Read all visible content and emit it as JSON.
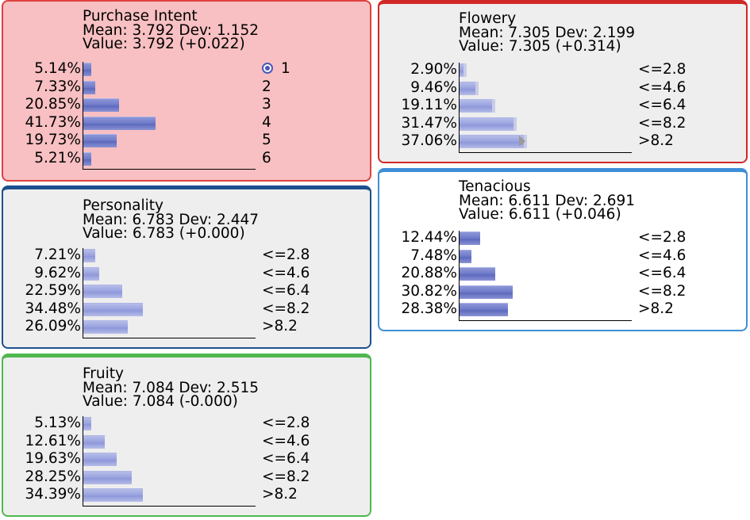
{
  "nodes": {
    "purchase_intent": {
      "title": "Purchase Intent",
      "stats": "Mean: 3.792 Dev: 1.152",
      "value": "Value: 3.792 (+0.022)",
      "border_color": "#e04040",
      "background": "#f8c0c2",
      "rows": [
        {
          "pct": "5.14%",
          "label": "1",
          "value": 5.14
        },
        {
          "pct": "7.33%",
          "label": "2",
          "value": 7.33
        },
        {
          "pct": "20.85%",
          "label": "3",
          "value": 20.85
        },
        {
          "pct": "41.73%",
          "label": "4",
          "value": 41.73
        },
        {
          "pct": "19.73%",
          "label": "5",
          "value": 19.73
        },
        {
          "pct": "5.21%",
          "label": "6",
          "value": 5.21
        }
      ]
    },
    "flowery": {
      "title": "Flowery",
      "stats": "Mean: 7.305 Dev: 2.199",
      "value": "Value: 7.305 (+0.314)",
      "border_color": "#d02828",
      "background": "#eeeeee",
      "rows": [
        {
          "pct": "2.90%",
          "label": "<=2.8",
          "value": 2.9
        },
        {
          "pct": "9.46%",
          "label": "<=4.6",
          "value": 9.46
        },
        {
          "pct": "19.11%",
          "label": "<=6.4",
          "value": 19.11
        },
        {
          "pct": "31.47%",
          "label": "<=8.2",
          "value": 31.47
        },
        {
          "pct": "37.06%",
          "label": ">8.2",
          "value": 37.06
        }
      ]
    },
    "personality": {
      "title": "Personality",
      "stats": "Mean: 6.783 Dev: 2.447",
      "value": "Value: 6.783 (+0.000)",
      "border_color": "#1f4f8f",
      "background": "#eeeeee",
      "rows": [
        {
          "pct": "7.21%",
          "label": "<=2.8",
          "value": 7.21
        },
        {
          "pct": "9.62%",
          "label": "<=4.6",
          "value": 9.62
        },
        {
          "pct": "22.59%",
          "label": "<=6.4",
          "value": 22.59
        },
        {
          "pct": "34.48%",
          "label": "<=8.2",
          "value": 34.48
        },
        {
          "pct": "26.09%",
          "label": ">8.2",
          "value": 26.09
        }
      ]
    },
    "tenacious": {
      "title": "Tenacious",
      "stats": "Mean: 6.611 Dev: 2.691",
      "value": "Value: 6.611 (+0.046)",
      "border_color": "#3e8ed8",
      "background": "#ffffff",
      "rows": [
        {
          "pct": "12.44%",
          "label": "<=2.8",
          "value": 12.44
        },
        {
          "pct": "7.48%",
          "label": "<=4.6",
          "value": 7.48
        },
        {
          "pct": "20.88%",
          "label": "<=6.4",
          "value": 20.88
        },
        {
          "pct": "30.82%",
          "label": "<=8.2",
          "value": 30.82
        },
        {
          "pct": "28.38%",
          "label": ">8.2",
          "value": 28.38
        }
      ]
    },
    "fruity": {
      "title": "Fruity",
      "stats": "Mean: 7.084 Dev: 2.515",
      "value": "Value: 7.084 (-0.000)",
      "border_color": "#4fb84f",
      "background": "#eeeeee",
      "rows": [
        {
          "pct": "5.13%",
          "label": "<=2.8",
          "value": 5.13
        },
        {
          "pct": "12.61%",
          "label": "<=4.6",
          "value": 12.61
        },
        {
          "pct": "19.63%",
          "label": "<=6.4",
          "value": 19.63
        },
        {
          "pct": "28.25%",
          "label": "<=8.2",
          "value": 28.25
        },
        {
          "pct": "34.39%",
          "label": ">8.2",
          "value": 34.39
        }
      ]
    }
  },
  "icons": {
    "target": "bullseye-target-icon"
  }
}
